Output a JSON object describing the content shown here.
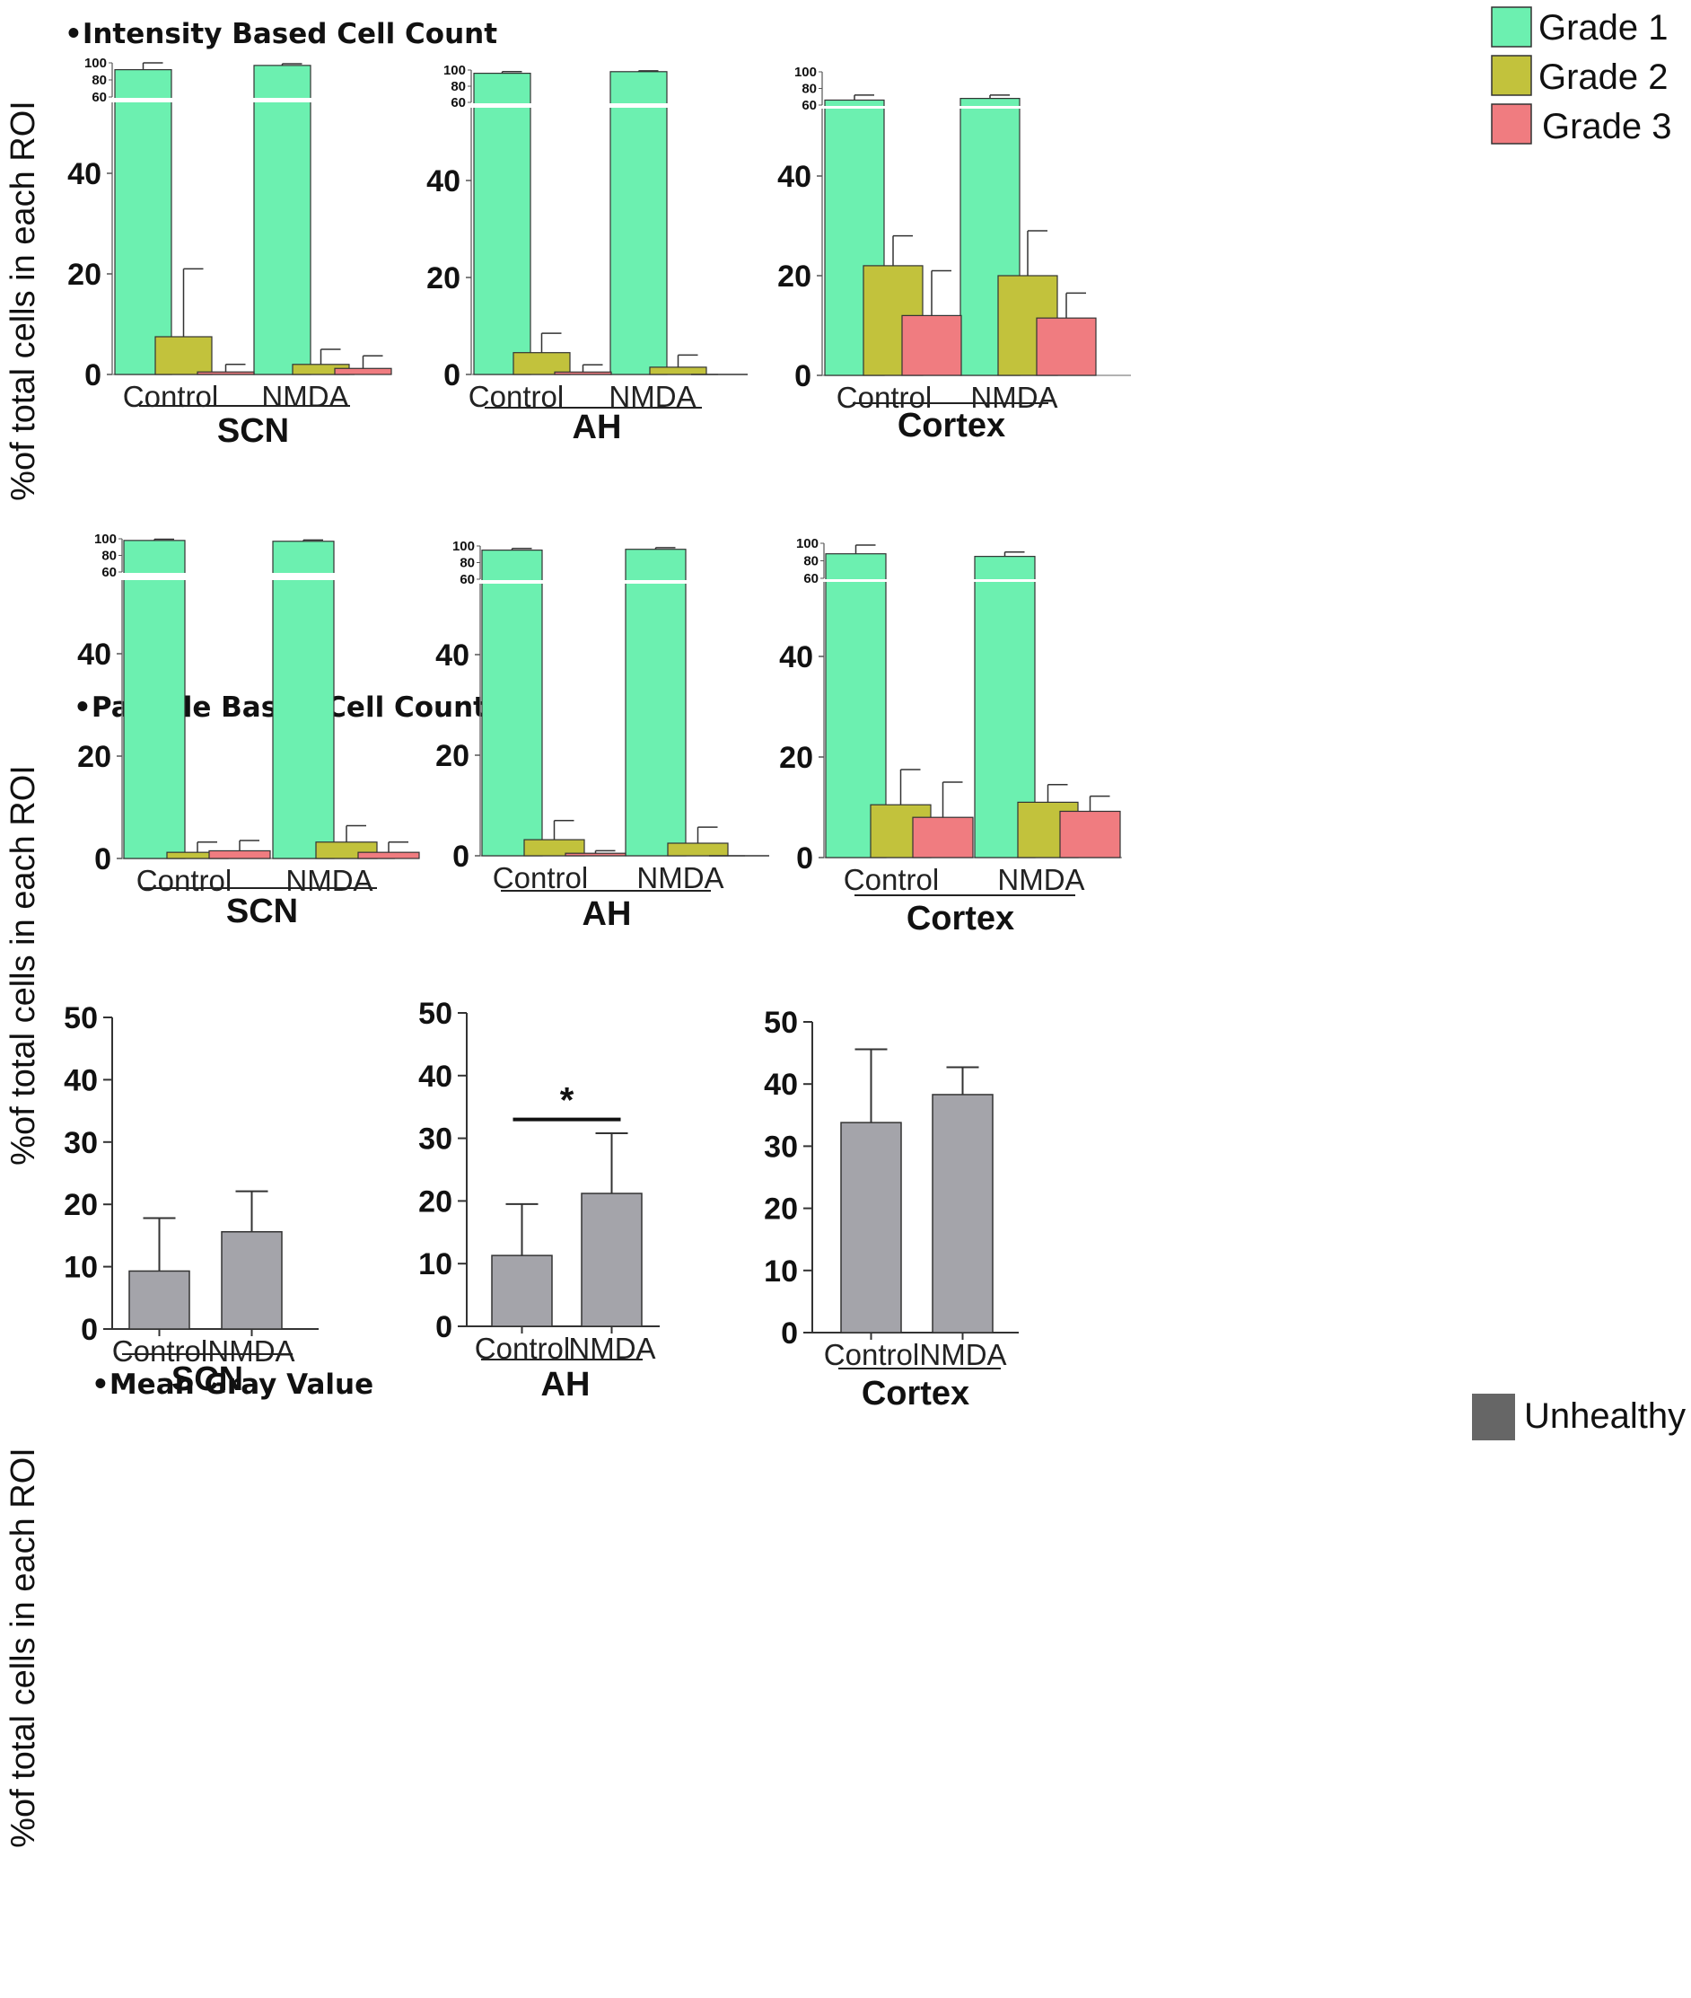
{
  "sections": [
    {
      "title": "•Intensity Based Cell Count"
    },
    {
      "title": "•Particle Based Cell Count"
    },
    {
      "title": "•Mean Gray Value"
    }
  ],
  "y_axis_label": "%of total cells in each ROI",
  "legend_top": [
    {
      "label": "Grade 1",
      "color": "#6CF0B0"
    },
    {
      "label": "Grade 2",
      "color": "#C2C23C"
    },
    {
      "label": "Grade 3",
      "color": "#F07C80"
    }
  ],
  "legend_bottom": {
    "label": "Unhealthy",
    "color": "#666666"
  },
  "chart_data": [
    {
      "type": "bar",
      "id": "i-scn",
      "title": "SCN",
      "section": "Intensity Based Cell Count",
      "ylabel": "%of total cells in each ROI",
      "ylim": [
        0,
        100
      ],
      "axis_break": [
        55,
        60
      ],
      "yticks": [
        0,
        20,
        40,
        60,
        80,
        100
      ],
      "categories": [
        "Control",
        "NMDA"
      ],
      "series": [
        {
          "name": "Grade 1",
          "values": [
            92,
            97
          ],
          "errors": [
            8,
            2
          ]
        },
        {
          "name": "Grade 2",
          "values": [
            7.5,
            2
          ],
          "errors": [
            13.5,
            3
          ]
        },
        {
          "name": "Grade 3",
          "values": [
            0.5,
            1.2
          ],
          "errors": [
            1.5,
            2.5
          ]
        }
      ]
    },
    {
      "type": "bar",
      "id": "i-ah",
      "title": "AH",
      "section": "Intensity Based Cell Count",
      "ylabel": "%of total cells in each ROI",
      "ylim": [
        0,
        100
      ],
      "axis_break": [
        55,
        60
      ],
      "yticks": [
        0,
        20,
        40,
        60,
        80,
        100
      ],
      "categories": [
        "Control",
        "NMDA"
      ],
      "series": [
        {
          "name": "Grade 1",
          "values": [
            96,
            98
          ],
          "errors": [
            2,
            1
          ]
        },
        {
          "name": "Grade 2",
          "values": [
            4.5,
            1.5
          ],
          "errors": [
            4,
            2.5
          ]
        },
        {
          "name": "Grade 3",
          "values": [
            0.5,
            0
          ],
          "errors": [
            1.5,
            0
          ]
        }
      ]
    },
    {
      "type": "bar",
      "id": "i-cortex",
      "title": "Cortex",
      "section": "Intensity Based Cell Count",
      "ylabel": "%of total cells in each ROI",
      "ylim": [
        0,
        100
      ],
      "axis_break": [
        55,
        60
      ],
      "yticks": [
        0,
        20,
        40,
        60,
        80,
        100
      ],
      "categories": [
        "Control",
        "NMDA"
      ],
      "series": [
        {
          "name": "Grade 1",
          "values": [
            66,
            68
          ],
          "errors": [
            6,
            4
          ]
        },
        {
          "name": "Grade 2",
          "values": [
            22,
            20
          ],
          "errors": [
            6,
            9
          ]
        },
        {
          "name": "Grade 3",
          "values": [
            12,
            11.5
          ],
          "errors": [
            9,
            5
          ]
        }
      ]
    },
    {
      "type": "bar",
      "id": "p-scn",
      "title": "SCN",
      "section": "Particle Based Cell Count",
      "ylabel": "%of total cells in each ROI",
      "ylim": [
        0,
        100
      ],
      "axis_break": [
        55,
        60
      ],
      "yticks": [
        0,
        20,
        40,
        60,
        80,
        100
      ],
      "categories": [
        "Control",
        "NMDA"
      ],
      "series": [
        {
          "name": "Grade 1",
          "values": [
            98,
            97
          ],
          "errors": [
            1.5,
            1.5
          ]
        },
        {
          "name": "Grade 2",
          "values": [
            1.2,
            3.2
          ],
          "errors": [
            2,
            3.2
          ]
        },
        {
          "name": "Grade 3",
          "values": [
            1.5,
            1.2
          ],
          "errors": [
            2,
            2
          ]
        }
      ]
    },
    {
      "type": "bar",
      "id": "p-ah",
      "title": "AH",
      "section": "Particle Based Cell Count",
      "ylabel": "%of total cells in each ROI",
      "ylim": [
        0,
        100
      ],
      "axis_break": [
        55,
        60
      ],
      "yticks": [
        0,
        20,
        40,
        60,
        80,
        100
      ],
      "categories": [
        "Control",
        "NMDA"
      ],
      "series": [
        {
          "name": "Grade 1",
          "values": [
            95,
            96
          ],
          "errors": [
            2,
            2
          ]
        },
        {
          "name": "Grade 2",
          "values": [
            3.2,
            2.5
          ],
          "errors": [
            3.8,
            3.2
          ]
        },
        {
          "name": "Grade 3",
          "values": [
            0.5,
            0
          ],
          "errors": [
            0.5,
            0
          ]
        }
      ]
    },
    {
      "type": "bar",
      "id": "p-cortex",
      "title": "Cortex",
      "section": "Particle Based Cell Count",
      "ylabel": "%of total cells in each ROI",
      "ylim": [
        0,
        100
      ],
      "axis_break": [
        55,
        60
      ],
      "yticks": [
        0,
        20,
        40,
        60,
        80,
        100
      ],
      "categories": [
        "Control",
        "NMDA"
      ],
      "series": [
        {
          "name": "Grade 1",
          "values": [
            88,
            85
          ],
          "errors": [
            10,
            5
          ]
        },
        {
          "name": "Grade 2",
          "values": [
            10.5,
            11
          ],
          "errors": [
            7,
            3.5
          ]
        },
        {
          "name": "Grade 3",
          "values": [
            8,
            9.2
          ],
          "errors": [
            7,
            3
          ]
        }
      ]
    },
    {
      "type": "bar",
      "id": "m-scn",
      "title": "SCN",
      "section": "Mean Gray Value",
      "ylabel": "%of total cells in each ROI",
      "ylim": [
        0,
        50
      ],
      "yticks": [
        0,
        10,
        20,
        30,
        40,
        50
      ],
      "categories": [
        "Control",
        "NMDA"
      ],
      "series": [
        {
          "name": "Unhealthy",
          "values": [
            9.3,
            15.6
          ],
          "errors": [
            8.5,
            6.5
          ]
        }
      ]
    },
    {
      "type": "bar",
      "id": "m-ah",
      "title": "AH",
      "section": "Mean Gray Value",
      "ylabel": "%of total cells in each ROI",
      "ylim": [
        0,
        50
      ],
      "yticks": [
        0,
        10,
        20,
        30,
        40,
        50
      ],
      "categories": [
        "Control",
        "NMDA"
      ],
      "annotation": "*",
      "series": [
        {
          "name": "Unhealthy",
          "values": [
            11.3,
            21.2
          ],
          "errors": [
            8.2,
            9.6
          ]
        }
      ]
    },
    {
      "type": "bar",
      "id": "m-cortex",
      "title": "Cortex",
      "section": "Mean Gray Value",
      "ylabel": "%of total cells in each ROI",
      "ylim": [
        0,
        50
      ],
      "yticks": [
        0,
        10,
        20,
        30,
        40,
        50
      ],
      "categories": [
        "Control",
        "NMDA"
      ],
      "series": [
        {
          "name": "Unhealthy",
          "values": [
            33.8,
            38.3
          ],
          "errors": [
            11.8,
            4.4
          ]
        }
      ]
    }
  ]
}
